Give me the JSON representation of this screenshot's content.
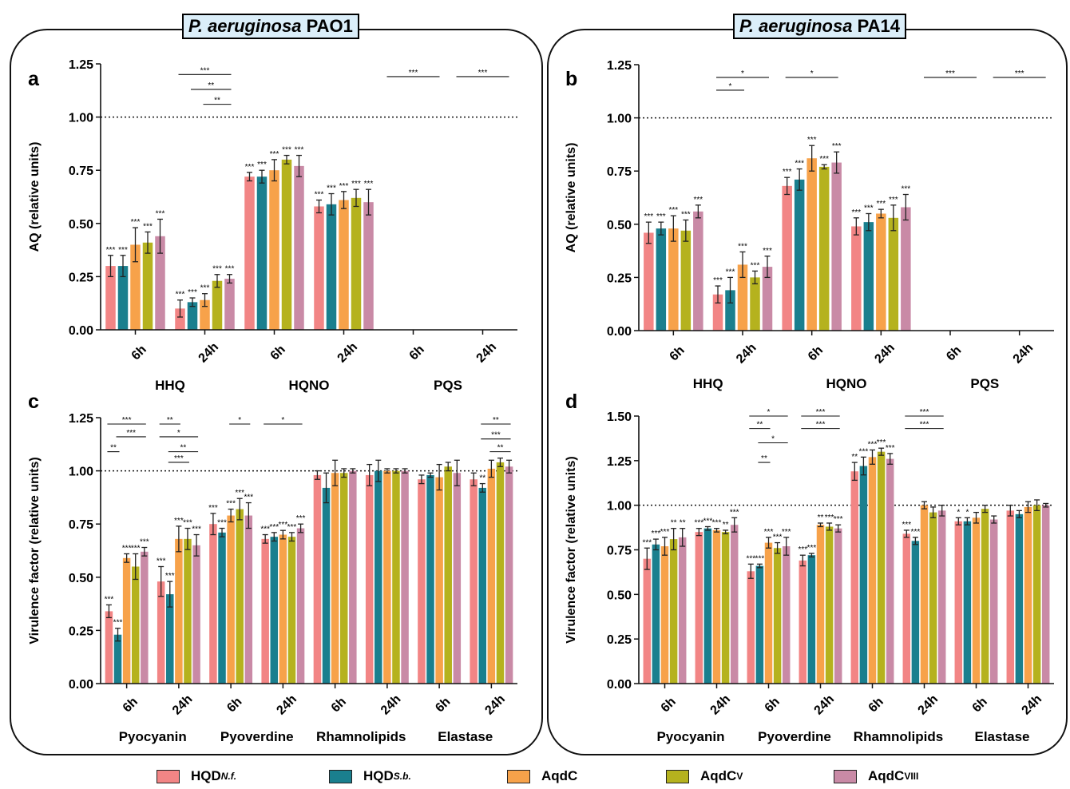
{
  "panel_titles": [
    {
      "species": "P. aeruginosa",
      "strain": "PAO1"
    },
    {
      "species": "P. aeruginosa",
      "strain": "PA14"
    }
  ],
  "legend": [
    {
      "main": "HQD",
      "sub": "N.f.",
      "sup": "",
      "color": "#f28585"
    },
    {
      "main": "HQD",
      "sub": "S.b.",
      "sup": "",
      "color": "#1a7f8e"
    },
    {
      "main": "AqdC",
      "sub": "",
      "sup": "",
      "color": "#f7a24a"
    },
    {
      "main": "AqdC",
      "sub": "",
      "sup": "V",
      "color": "#b5b21e"
    },
    {
      "main": "AqdC",
      "sub": "",
      "sup": "VIII",
      "color": "#c98aa6"
    }
  ],
  "chart_data": [
    {
      "type": "bar",
      "panel": "a",
      "ylabel": "AQ (relative units)",
      "ylim": [
        0,
        1.25
      ],
      "yticks": [
        "0.00",
        "0.25",
        "0.50",
        "0.75",
        "1.00",
        "1.25"
      ],
      "reference_line": 1.0,
      "groups": [
        {
          "label": "HHQ",
          "span": 2
        },
        {
          "label": "HQNO",
          "span": 2
        },
        {
          "label": "PQS",
          "span": 2
        }
      ],
      "categories": [
        "6h",
        "24h",
        "6h",
        "24h",
        "6h",
        "24h"
      ],
      "series": [
        {
          "values": [
            0.3,
            0.1,
            0.72,
            0.58,
            0,
            0
          ],
          "errors": [
            0.05,
            0.04,
            0.02,
            0.03,
            0,
            0
          ]
        },
        {
          "values": [
            0.3,
            0.13,
            0.72,
            0.59,
            0,
            0
          ],
          "errors": [
            0.05,
            0.02,
            0.03,
            0.05,
            0,
            0
          ]
        },
        {
          "values": [
            0.4,
            0.14,
            0.75,
            0.61,
            0,
            0
          ],
          "errors": [
            0.08,
            0.03,
            0.05,
            0.04,
            0,
            0
          ]
        },
        {
          "values": [
            0.41,
            0.23,
            0.8,
            0.62,
            0,
            0
          ],
          "errors": [
            0.05,
            0.03,
            0.02,
            0.04,
            0,
            0
          ]
        },
        {
          "values": [
            0.44,
            0.24,
            0.77,
            0.6,
            0,
            0
          ],
          "errors": [
            0.08,
            0.02,
            0.05,
            0.06,
            0,
            0
          ]
        }
      ],
      "annotations": [
        [
          "***",
          "***",
          "***",
          "***",
          "***"
        ],
        [
          "***",
          "***",
          "***",
          "***",
          "***"
        ],
        [
          "***",
          "***",
          "***",
          "***",
          "***"
        ],
        [
          "***",
          "***",
          "***",
          "***",
          "***"
        ],
        [
          "",
          "",
          "",
          "",
          ""
        ],
        [
          "",
          "",
          "",
          "",
          ""
        ]
      ],
      "brackets": [
        {
          "c1": 1,
          "b1": 0,
          "c2": 1,
          "b2": 4,
          "y": 1.2,
          "label": "***"
        },
        {
          "c1": 1,
          "b1": 1,
          "c2": 1,
          "b2": 4,
          "y": 1.13,
          "label": "**"
        },
        {
          "c1": 1,
          "b1": 2,
          "c2": 1,
          "b2": 4,
          "y": 1.06,
          "label": "**"
        },
        {
          "c1": 4,
          "b1": 0,
          "c2": 4,
          "b2": 4,
          "y": 1.19,
          "label": "***"
        },
        {
          "c1": 5,
          "b1": 0,
          "c2": 5,
          "b2": 4,
          "y": 1.19,
          "label": "***"
        }
      ]
    },
    {
      "type": "bar",
      "panel": "b",
      "ylabel": "AQ (relative units)",
      "ylim": [
        0,
        1.25
      ],
      "yticks": [
        "0.00",
        "0.25",
        "0.50",
        "0.75",
        "1.00",
        "1.25"
      ],
      "reference_line": 1.0,
      "groups": [
        {
          "label": "HHQ",
          "span": 2
        },
        {
          "label": "HQNO",
          "span": 2
        },
        {
          "label": "PQS",
          "span": 2
        }
      ],
      "categories": [
        "6h",
        "24h",
        "6h",
        "24h",
        "6h",
        "24h"
      ],
      "series": [
        {
          "values": [
            0.46,
            0.17,
            0.68,
            0.49,
            0,
            0
          ],
          "errors": [
            0.05,
            0.04,
            0.04,
            0.04,
            0,
            0
          ]
        },
        {
          "values": [
            0.48,
            0.19,
            0.71,
            0.51,
            0,
            0
          ],
          "errors": [
            0.03,
            0.06,
            0.05,
            0.04,
            0,
            0
          ]
        },
        {
          "values": [
            0.48,
            0.31,
            0.81,
            0.55,
            0,
            0
          ],
          "errors": [
            0.06,
            0.06,
            0.06,
            0.02,
            0,
            0
          ]
        },
        {
          "values": [
            0.47,
            0.25,
            0.77,
            0.53,
            0,
            0
          ],
          "errors": [
            0.05,
            0.03,
            0.01,
            0.06,
            0,
            0
          ]
        },
        {
          "values": [
            0.56,
            0.3,
            0.79,
            0.58,
            0,
            0
          ],
          "errors": [
            0.03,
            0.05,
            0.05,
            0.06,
            0,
            0
          ]
        }
      ],
      "annotations": [
        [
          "***",
          "***",
          "***",
          "***",
          "***"
        ],
        [
          "***",
          "***",
          "***",
          "***",
          "***"
        ],
        [
          "***",
          "***",
          "***",
          "***",
          "***"
        ],
        [
          "***",
          "***",
          "***",
          "***",
          "***"
        ],
        [
          "",
          "",
          "",
          "",
          ""
        ],
        [
          "",
          "",
          "",
          "",
          ""
        ]
      ],
      "brackets": [
        {
          "c1": 1,
          "b1": 0,
          "c2": 1,
          "b2": 4,
          "y": 1.19,
          "label": "*"
        },
        {
          "c1": 1,
          "b1": 0,
          "c2": 1,
          "b2": 2,
          "y": 1.13,
          "label": "*"
        },
        {
          "c1": 2,
          "b1": 0,
          "c2": 2,
          "b2": 4,
          "y": 1.19,
          "label": "*"
        },
        {
          "c1": 4,
          "b1": 0,
          "c2": 4,
          "b2": 4,
          "y": 1.19,
          "label": "***"
        },
        {
          "c1": 5,
          "b1": 0,
          "c2": 5,
          "b2": 4,
          "y": 1.19,
          "label": "***"
        }
      ]
    },
    {
      "type": "bar",
      "panel": "c",
      "ylabel": "Virulence factor (relative units)",
      "ylim": [
        0,
        1.25
      ],
      "yticks": [
        "0.00",
        "0.25",
        "0.50",
        "0.75",
        "1.00",
        "1.25"
      ],
      "reference_line": 1.0,
      "groups": [
        {
          "label": "Pyocyanin",
          "span": 2
        },
        {
          "label": "Pyoverdine",
          "span": 2
        },
        {
          "label": "Rhamnolipids",
          "span": 2
        },
        {
          "label": "Elastase",
          "span": 2
        }
      ],
      "categories": [
        "6h",
        "24h",
        "6h",
        "24h",
        "6h",
        "24h",
        "6h",
        "24h"
      ],
      "series": [
        {
          "values": [
            0.34,
            0.48,
            0.75,
            0.68,
            0.98,
            0.98,
            0.96,
            0.96
          ],
          "errors": [
            0.03,
            0.07,
            0.05,
            0.02,
            0.02,
            0.05,
            0.02,
            0.03
          ]
        },
        {
          "values": [
            0.23,
            0.42,
            0.71,
            0.69,
            0.92,
            1.0,
            0.98,
            0.92
          ],
          "errors": [
            0.03,
            0.06,
            0.02,
            0.02,
            0.07,
            0.05,
            0.01,
            0.02
          ]
        },
        {
          "values": [
            0.59,
            0.68,
            0.79,
            0.7,
            0.99,
            1.0,
            0.97,
            1.01
          ],
          "errors": [
            0.02,
            0.06,
            0.03,
            0.02,
            0.06,
            0.01,
            0.06,
            0.04
          ]
        },
        {
          "values": [
            0.55,
            0.68,
            0.82,
            0.69,
            0.99,
            1.0,
            1.02,
            1.04
          ],
          "errors": [
            0.06,
            0.05,
            0.05,
            0.02,
            0.02,
            0.01,
            0.02,
            0.02
          ]
        },
        {
          "values": [
            0.62,
            0.65,
            0.79,
            0.73,
            1.0,
            1.0,
            0.99,
            1.02
          ],
          "errors": [
            0.02,
            0.05,
            0.06,
            0.02,
            0.01,
            0.01,
            0.06,
            0.03
          ]
        }
      ],
      "annotations": [
        [
          "***",
          "***",
          "***",
          "***",
          "***"
        ],
        [
          "***",
          "***",
          "***",
          "***",
          "***"
        ],
        [
          "***",
          "***",
          "***",
          "***",
          "***"
        ],
        [
          "***",
          "***",
          "***",
          "***",
          "***"
        ],
        [
          "",
          "",
          "",
          "",
          ""
        ],
        [
          "",
          "",
          "",
          "",
          ""
        ],
        [
          "",
          "",
          "",
          "",
          ""
        ],
        [
          "",
          "**",
          "",
          "",
          ""
        ]
      ],
      "brackets": [
        {
          "c1": 0,
          "b1": 0,
          "c2": 0,
          "b2": 4,
          "y": 1.22,
          "label": "***"
        },
        {
          "c1": 0,
          "b1": 1,
          "c2": 0,
          "b2": 4,
          "y": 1.16,
          "label": "***"
        },
        {
          "c1": 0,
          "b1": 0,
          "c2": 0,
          "b2": 1,
          "y": 1.09,
          "label": "**"
        },
        {
          "c1": 1,
          "b1": 0,
          "c2": 1,
          "b2": 2,
          "y": 1.22,
          "label": "**"
        },
        {
          "c1": 1,
          "b1": 0,
          "c2": 1,
          "b2": 4,
          "y": 1.16,
          "label": "*"
        },
        {
          "c1": 1,
          "b1": 1,
          "c2": 1,
          "b2": 4,
          "y": 1.09,
          "label": "**"
        },
        {
          "c1": 1,
          "b1": 1,
          "c2": 1,
          "b2": 3,
          "y": 1.04,
          "label": "***"
        },
        {
          "c1": 2,
          "b1": 2,
          "c2": 2,
          "b2": 4,
          "y": 1.22,
          "label": "*"
        },
        {
          "c1": 3,
          "b1": 0,
          "c2": 3,
          "b2": 4,
          "y": 1.22,
          "label": "*"
        },
        {
          "c1": 7,
          "b1": 1,
          "c2": 7,
          "b2": 4,
          "y": 1.22,
          "label": "**"
        },
        {
          "c1": 7,
          "b1": 1,
          "c2": 7,
          "b2": 4,
          "y": 1.15,
          "label": "***"
        },
        {
          "c1": 7,
          "b1": 2,
          "c2": 7,
          "b2": 4,
          "y": 1.09,
          "label": "**"
        }
      ]
    },
    {
      "type": "bar",
      "panel": "d",
      "ylabel": "Virulence factor (relative units)",
      "ylim": [
        0,
        1.5
      ],
      "yticks": [
        "0.00",
        "0.25",
        "0.50",
        "0.75",
        "1.00",
        "1.25",
        "1.50"
      ],
      "reference_line": 1.0,
      "groups": [
        {
          "label": "Pyocyanin",
          "span": 2
        },
        {
          "label": "Pyoverdine",
          "span": 2
        },
        {
          "label": "Rhamnolipids",
          "span": 2
        },
        {
          "label": "Elastase",
          "span": 2
        }
      ],
      "categories": [
        "6h",
        "24h",
        "6h",
        "24h",
        "6h",
        "24h",
        "6h",
        "24h"
      ],
      "series": [
        {
          "values": [
            0.7,
            0.85,
            0.63,
            0.69,
            1.19,
            0.84,
            0.91,
            0.97
          ],
          "errors": [
            0.06,
            0.02,
            0.04,
            0.03,
            0.05,
            0.02,
            0.02,
            0.03
          ]
        },
        {
          "values": [
            0.78,
            0.87,
            0.66,
            0.72,
            1.22,
            0.8,
            0.91,
            0.95
          ],
          "errors": [
            0.03,
            0.01,
            0.01,
            0.01,
            0.05,
            0.02,
            0.02,
            0.02
          ]
        },
        {
          "values": [
            0.77,
            0.86,
            0.79,
            0.89,
            1.27,
            1.0,
            0.93,
            0.99
          ],
          "errors": [
            0.05,
            0.01,
            0.03,
            0.01,
            0.04,
            0.02,
            0.03,
            0.03
          ]
        },
        {
          "values": [
            0.81,
            0.85,
            0.76,
            0.88,
            1.3,
            0.96,
            0.98,
            1.0
          ],
          "errors": [
            0.06,
            0.01,
            0.03,
            0.02,
            0.02,
            0.03,
            0.02,
            0.03
          ]
        },
        {
          "values": [
            0.82,
            0.89,
            0.77,
            0.87,
            1.26,
            0.97,
            0.92,
            1.0
          ],
          "errors": [
            0.05,
            0.04,
            0.05,
            0.02,
            0.03,
            0.03,
            0.02,
            0.01
          ]
        }
      ],
      "annotations": [
        [
          "***",
          "***",
          "***",
          "**",
          "**"
        ],
        [
          "***",
          "***",
          "***",
          "**",
          "***"
        ],
        [
          "***",
          "***",
          "***",
          "***",
          "***"
        ],
        [
          "***",
          "***",
          "**",
          "***",
          "***"
        ],
        [
          "**",
          "***",
          "***",
          "***",
          "***"
        ],
        [
          "***",
          "***",
          "",
          "",
          ""
        ],
        [
          "*",
          "*",
          "",
          "",
          ""
        ],
        [
          "",
          "",
          "",
          "",
          ""
        ]
      ],
      "brackets": [
        {
          "c1": 2,
          "b1": 0,
          "c2": 2,
          "b2": 4,
          "y": 1.5,
          "label": "*"
        },
        {
          "c1": 2,
          "b1": 0,
          "c2": 2,
          "b2": 2,
          "y": 1.43,
          "label": "**"
        },
        {
          "c1": 2,
          "b1": 1,
          "c2": 2,
          "b2": 4,
          "y": 1.35,
          "label": "*"
        },
        {
          "c1": 2,
          "b1": 1,
          "c2": 2,
          "b2": 2,
          "y": 1.24,
          "label": "**"
        },
        {
          "c1": 3,
          "b1": 0,
          "c2": 3,
          "b2": 4,
          "y": 1.5,
          "label": "***"
        },
        {
          "c1": 3,
          "b1": 0,
          "c2": 3,
          "b2": 4,
          "y": 1.43,
          "label": "***"
        },
        {
          "c1": 5,
          "b1": 0,
          "c2": 5,
          "b2": 4,
          "y": 1.5,
          "label": "***"
        },
        {
          "c1": 5,
          "b1": 0,
          "c2": 5,
          "b2": 4,
          "y": 1.43,
          "label": "***"
        }
      ]
    }
  ]
}
